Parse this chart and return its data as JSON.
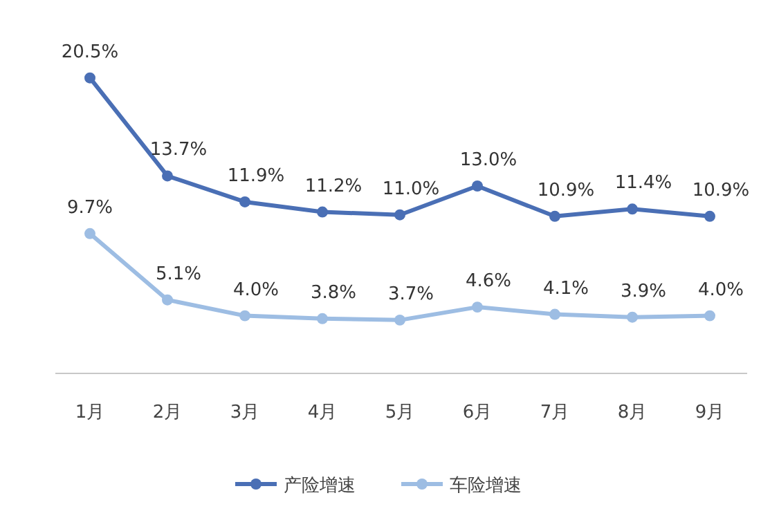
{
  "chart_data": {
    "type": "line",
    "categories": [
      "1月",
      "2月",
      "3月",
      "4月",
      "5月",
      "6月",
      "7月",
      "8月",
      "9月"
    ],
    "series": [
      {
        "name": "产险增速",
        "color": "#4a6fb5",
        "values": [
          20.5,
          13.7,
          11.9,
          11.2,
          11.0,
          13.0,
          10.9,
          11.4,
          10.9
        ],
        "value_labels": [
          "20.5%",
          "13.7%",
          "11.9%",
          "11.2%",
          "11.0%",
          "13.0%",
          "10.9%",
          "11.4%",
          "10.9%"
        ]
      },
      {
        "name": "车险增速",
        "color": "#9dbde3",
        "values": [
          9.7,
          5.1,
          4.0,
          3.8,
          3.7,
          4.6,
          4.1,
          3.9,
          4.0
        ],
        "value_labels": [
          "9.7%",
          "5.1%",
          "4.0%",
          "3.8%",
          "3.7%",
          "4.6%",
          "4.1%",
          "3.9%",
          "4.0%"
        ]
      }
    ],
    "legend": "bottom",
    "marker": "circle",
    "line_style": "solid",
    "grid": false
  }
}
